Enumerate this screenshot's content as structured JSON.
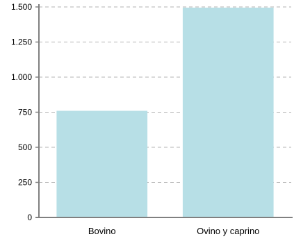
{
  "chart_data": {
    "type": "bar",
    "categories": [
      "Bovino",
      "Ovino y caprino"
    ],
    "values": [
      760,
      1495
    ],
    "title": "",
    "xlabel": "",
    "ylabel": "",
    "ylim": [
      0,
      1500
    ],
    "yticks": [
      0,
      250,
      500,
      750,
      1000,
      1250,
      1500
    ],
    "ytick_labels": [
      "0",
      "250",
      "500",
      "750",
      "1.000",
      "1.250",
      "1.500"
    ],
    "grid": true,
    "bar_color": "#b7dfe6",
    "axis_color": "#808080",
    "grid_color": "#b3b3b3"
  }
}
